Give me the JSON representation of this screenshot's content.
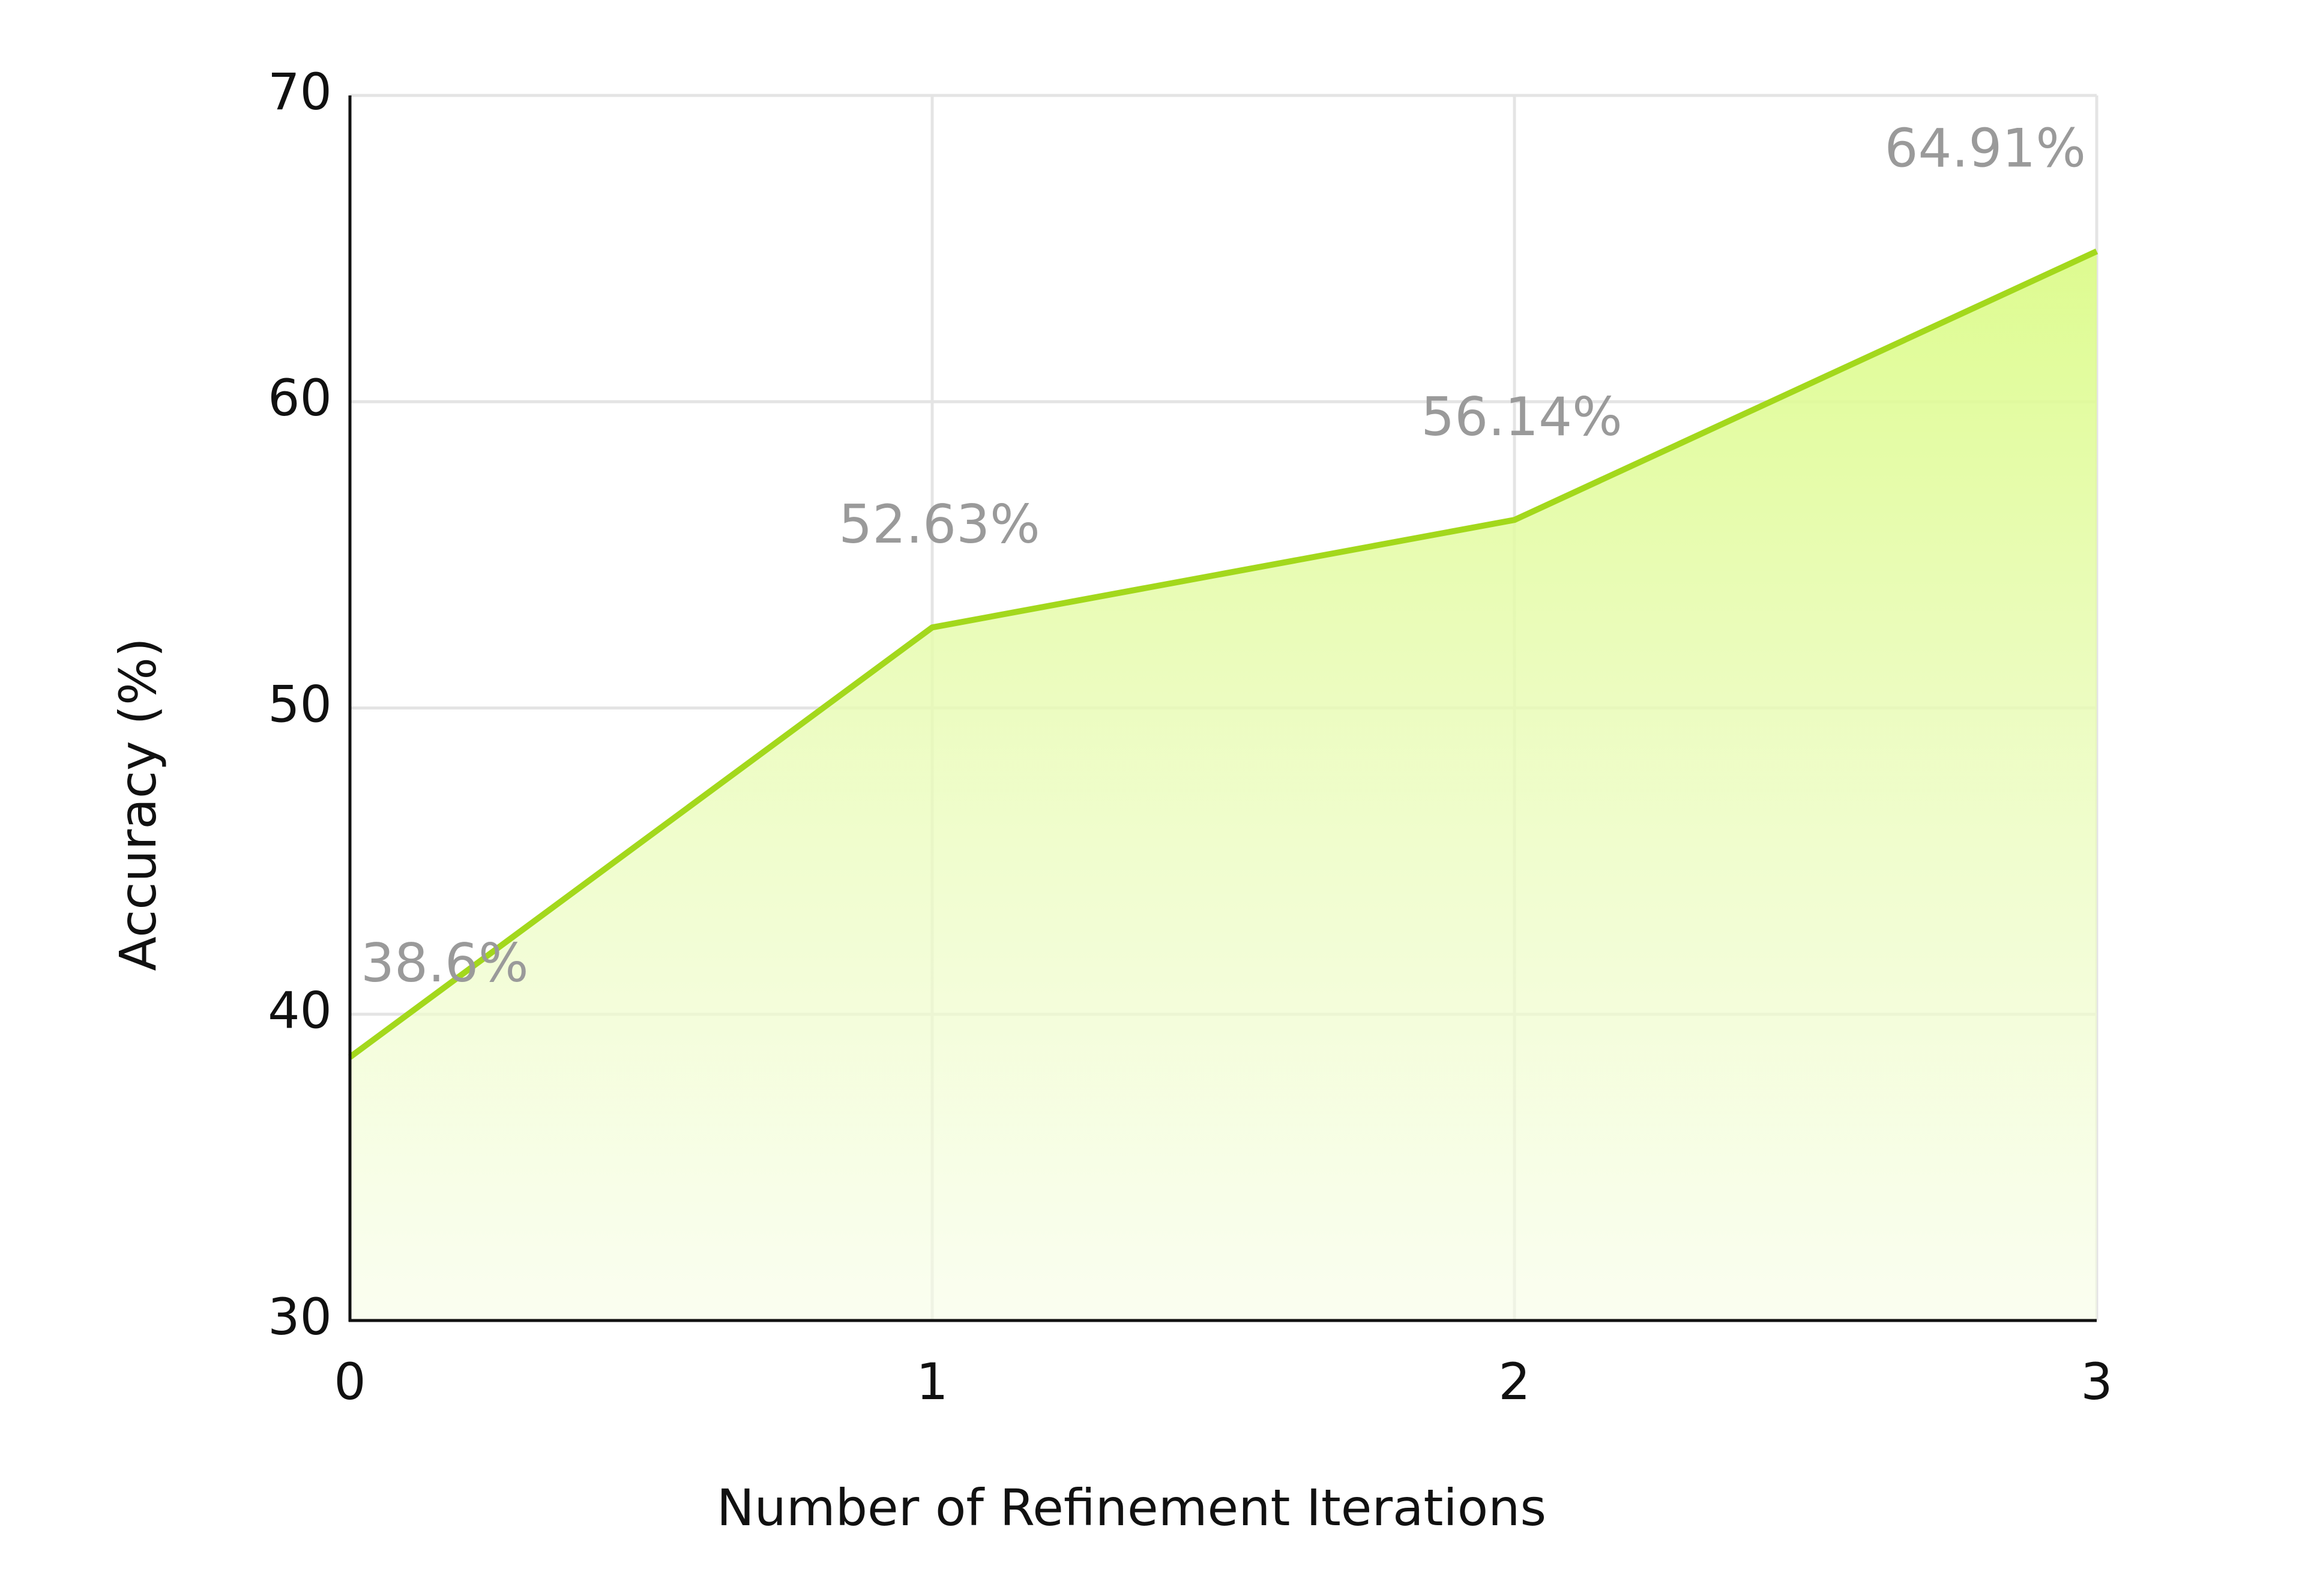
{
  "chart_data": {
    "type": "area",
    "x": [
      0,
      1,
      2,
      3
    ],
    "values": [
      38.6,
      52.63,
      56.14,
      64.91
    ],
    "value_labels": [
      "38.6%",
      "52.63%",
      "56.14%",
      "64.91%"
    ],
    "color": "#a3d81c",
    "xlabel": "Number of Refinement Iterations",
    "ylabel": "Accuracy (%)",
    "xlim": [
      0,
      3
    ],
    "xticks": [
      0,
      1,
      2,
      3
    ],
    "ylim": [
      30,
      70
    ],
    "yticks": [
      30,
      40,
      50,
      60,
      70
    ],
    "grid": true
  }
}
